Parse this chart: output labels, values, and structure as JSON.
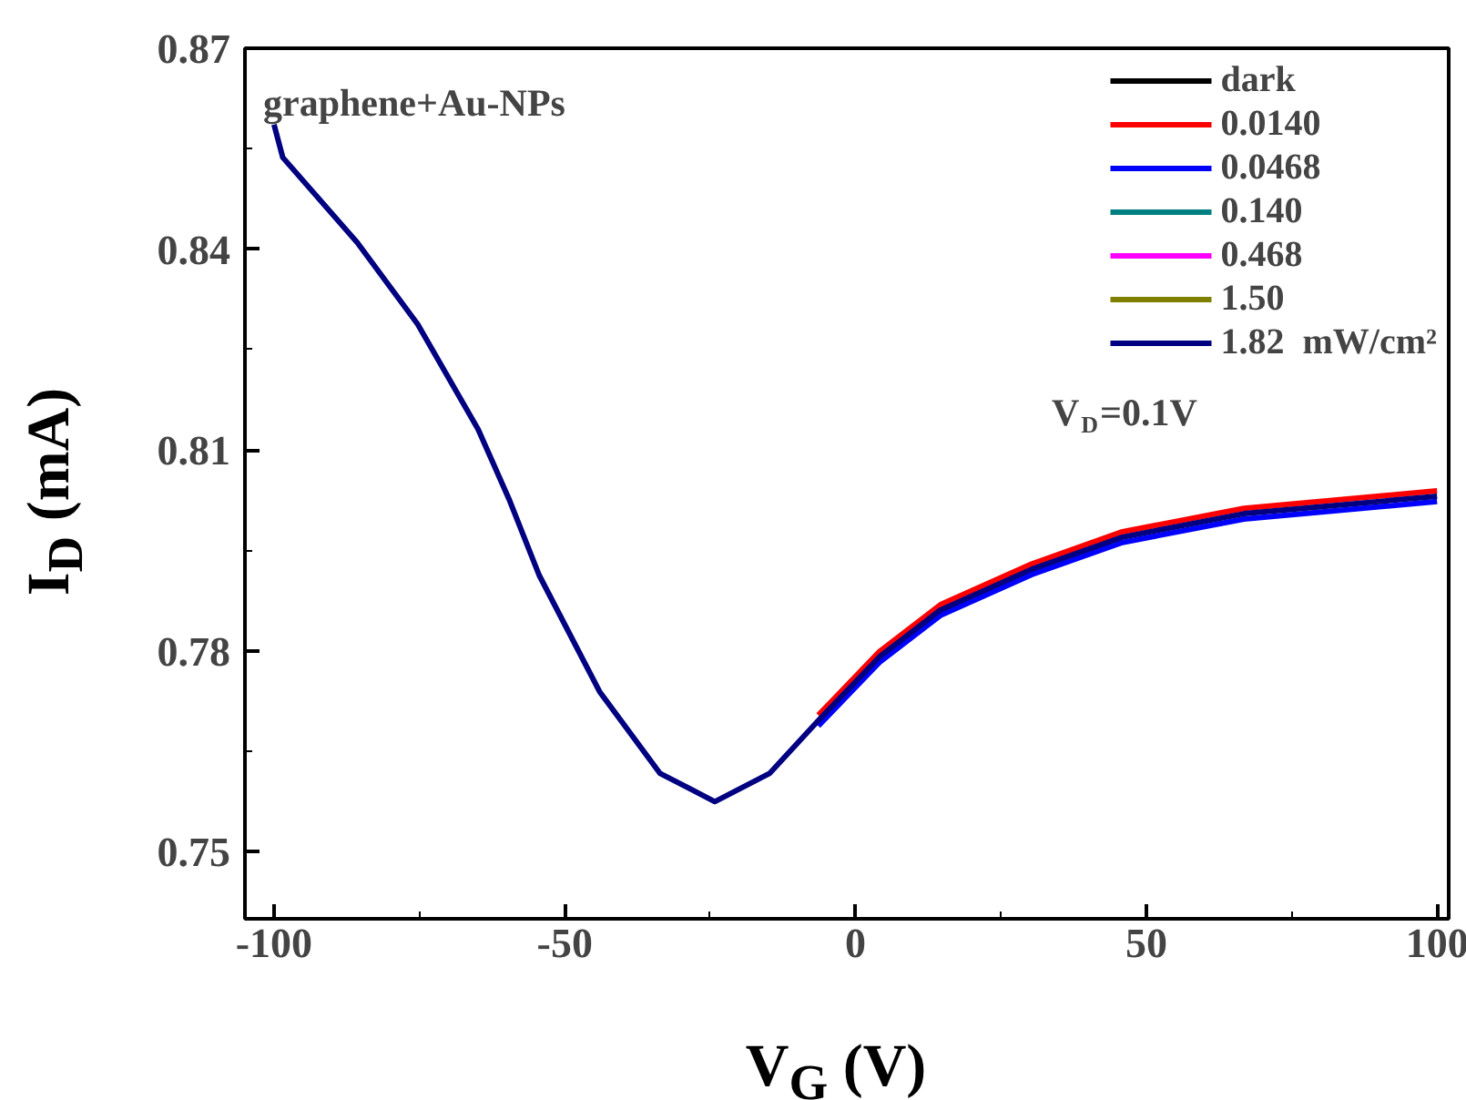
{
  "chart_data": {
    "type": "line",
    "xlabel": "V$_{G}$ (V)",
    "ylabel": "I$_{D}$ (mA)",
    "x": [
      -100,
      -98.5,
      -85.7,
      -75.3,
      -64.9,
      -59.6,
      -54.4,
      -44,
      -33.6,
      -24.2,
      -14.8,
      -6.4,
      4.1,
      14.6,
      30.3,
      45.9,
      66.8,
      100
    ],
    "xlim": [
      -105,
      102
    ],
    "xticks": [
      -100,
      -50,
      0,
      50,
      100
    ],
    "ylim": [
      0.74,
      0.87
    ],
    "yticks": [
      0.75,
      0.78,
      0.81,
      0.84,
      0.87
    ],
    "grid": false,
    "legend": "top right",
    "line_style": "solid",
    "marker": "none",
    "annotations": [
      "graphene+Au-NPs",
      "V$_{D}$=0.1V"
    ],
    "series": [
      {
        "name": "dark",
        "color": "#000000",
        "values": [
          null,
          null,
          null,
          null,
          null,
          null,
          null,
          null,
          null,
          null,
          null,
          null,
          null,
          null,
          null,
          null,
          null,
          null
        ]
      },
      {
        "name": "0.0140",
        "color": "#ff0000",
        "values": [
          null,
          null,
          null,
          null,
          null,
          null,
          null,
          null,
          null,
          null,
          null,
          0.7704,
          0.7799,
          0.7869,
          0.793,
          0.7978,
          0.8013,
          0.8039
        ]
      },
      {
        "name": "0.0468",
        "color": "#0000ff",
        "values": [
          null,
          null,
          null,
          null,
          null,
          null,
          null,
          null,
          null,
          null,
          null,
          0.7688,
          0.7783,
          0.7853,
          0.7914,
          0.7962,
          0.7997,
          0.8023
        ]
      },
      {
        "name": "0.140",
        "color": "#008080",
        "values": [
          null,
          null,
          null,
          null,
          null,
          null,
          null,
          null,
          null,
          null,
          null,
          null,
          null,
          null,
          null,
          null,
          null,
          null
        ]
      },
      {
        "name": "0.468",
        "color": "#ff00ff",
        "values": [
          null,
          null,
          null,
          null,
          null,
          null,
          null,
          null,
          null,
          null,
          null,
          null,
          null,
          null,
          null,
          null,
          null,
          null
        ]
      },
      {
        "name": "1.50",
        "color": "#808000",
        "values": [
          null,
          null,
          null,
          null,
          null,
          null,
          null,
          null,
          null,
          null,
          null,
          null,
          null,
          null,
          null,
          null,
          null,
          null
        ]
      },
      {
        "name": "1.82  mW/cm²",
        "color": "#000080",
        "values": [
          0.8586,
          0.8537,
          0.841,
          0.8288,
          0.8131,
          0.8027,
          0.7913,
          0.7739,
          0.7617,
          0.7575,
          0.7617,
          0.7696,
          0.7791,
          0.7861,
          0.7922,
          0.797,
          0.8005,
          0.8031
        ]
      }
    ]
  }
}
